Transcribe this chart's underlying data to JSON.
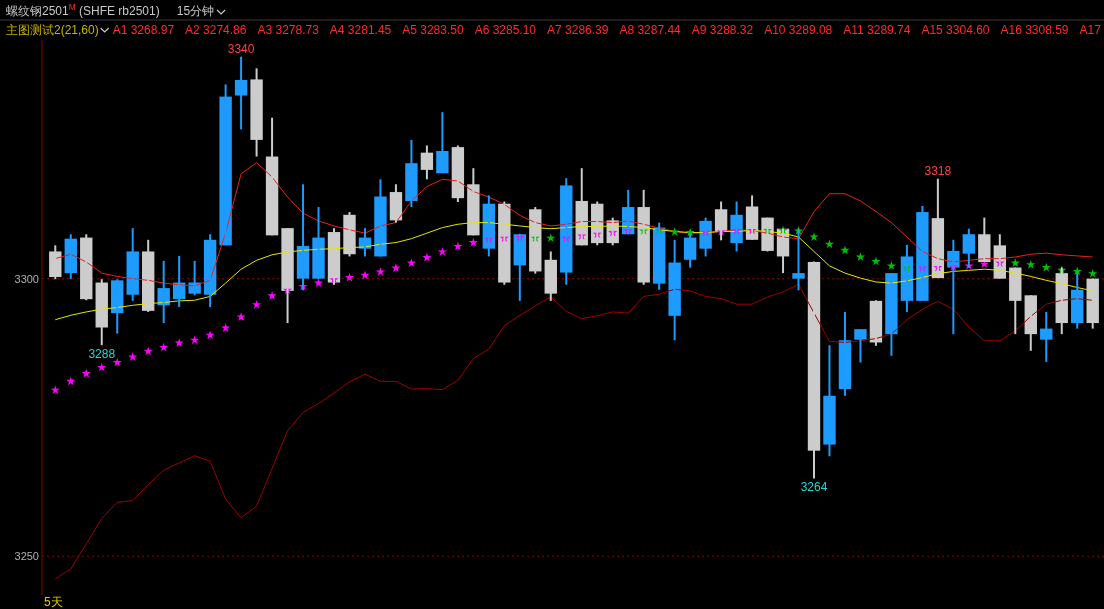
{
  "chart_data": {
    "type": "candlestick",
    "title": "螺纹钢2501$^{M}$ (SHFE rb2501)",
    "subtitle": "15分钟",
    "annotations": [
      "主图测试2(21,60)",
      "A1 3268.97",
      "A2 3274.86",
      "A3 3278.73",
      "A4 3281.45",
      "A5 3283.50",
      "A6 3285.10",
      "A7 3286.39",
      "A8 3287.44",
      "A9 3288.32",
      "A10 3289.08",
      "A11 3289.74",
      "A15 3304.60",
      "A16 3308.59",
      "A17",
      "5天"
    ],
    "value_labels": [
      null,
      null,
      null,
      "3288",
      null,
      null,
      null,
      null,
      null,
      null,
      null,
      null,
      "3340",
      null,
      null,
      null,
      null,
      null,
      null,
      null,
      null,
      null,
      null,
      null,
      null,
      null,
      null,
      null,
      null,
      null,
      null,
      null,
      null,
      null,
      null,
      null,
      null,
      null,
      null,
      null,
      null,
      null,
      null,
      null,
      null,
      null,
      null,
      null,
      null,
      "3264",
      null,
      null,
      null,
      null,
      null,
      null,
      null,
      "3318",
      null,
      null,
      null,
      null,
      null,
      null,
      null,
      null,
      null,
      null
    ],
    "categories": [
      null,
      null,
      null,
      null,
      null,
      null,
      null,
      null,
      null,
      null,
      null,
      null,
      null,
      null,
      null,
      null,
      null,
      null,
      null,
      null,
      null,
      null,
      null,
      null,
      null,
      null,
      null,
      null,
      null,
      null,
      null,
      null,
      null,
      null,
      null,
      null,
      null,
      null,
      null,
      null,
      null,
      null,
      null,
      null,
      null,
      null,
      null,
      null,
      null,
      null,
      null,
      null,
      null,
      null,
      null,
      null,
      null,
      null,
      null,
      null,
      null,
      null,
      null,
      null,
      null,
      null,
      null,
      null
    ],
    "ohlc": [
      [
        3304.9,
        3306,
        3299.9,
        3300.3
      ],
      [
        3301,
        3308,
        3299.9,
        3307.2
      ],
      [
        3307.4,
        3308,
        3296.1,
        3296.3
      ],
      [
        3299.3,
        3299.9,
        3288,
        3291.2
      ],
      [
        3293.8,
        3299.9,
        3290.1,
        3299.7
      ],
      [
        3297.1,
        3309.1,
        3296,
        3304.9
      ],
      [
        3304.9,
        3307,
        3294,
        3294.2
      ],
      [
        3295.2,
        3303.2,
        3292,
        3298.3
      ],
      [
        3296.3,
        3304.1,
        3294.9,
        3299.3
      ],
      [
        3297.3,
        3303.2,
        3297,
        3299.3
      ],
      [
        3297.1,
        3308,
        3294.9,
        3307
      ],
      [
        3306,
        3335,
        3306,
        3332.8
      ],
      [
        3333,
        3340,
        3326.9,
        3335.8
      ],
      [
        3335.9,
        3337.9,
        3322,
        3325
      ],
      [
        3322,
        3329,
        3307.8,
        3307.8
      ],
      [
        3309.1,
        3309.1,
        3292,
        3297.8
      ],
      [
        3300,
        3317,
        3297.9,
        3305.9
      ],
      [
        3300,
        3312.9,
        3299.9,
        3307.4
      ],
      [
        3308.4,
        3309.1,
        3298.9,
        3299.3
      ],
      [
        3311.5,
        3312,
        3304,
        3304.4
      ],
      [
        3305.4,
        3309.1,
        3304,
        3307.4
      ],
      [
        3304,
        3317.9,
        3304,
        3314.8
      ],
      [
        3315.6,
        3317,
        3310.1,
        3310.5
      ],
      [
        3314,
        3325,
        3312.9,
        3320.8
      ],
      [
        3322.7,
        3324,
        3317.9,
        3319.6
      ],
      [
        3319,
        3330,
        3319,
        3323
      ],
      [
        3323.7,
        3324,
        3313.8,
        3314.5
      ],
      [
        3317,
        3319.9,
        3307.8,
        3307.8
      ],
      [
        3305.4,
        3315,
        3304,
        3313.5
      ],
      [
        3313.5,
        3313.9,
        3298.9,
        3299.3
      ],
      [
        3302.4,
        3308,
        3296,
        3308
      ],
      [
        3312.5,
        3312.9,
        3300.9,
        3301.3
      ],
      [
        3303.4,
        3304.9,
        3296,
        3297.3
      ],
      [
        3301.1,
        3318.1,
        3298.9,
        3316.8
      ],
      [
        3314,
        3319.9,
        3306,
        3306
      ],
      [
        3313.5,
        3313.9,
        3306,
        3306.4
      ],
      [
        3310.5,
        3311,
        3306,
        3306.4
      ],
      [
        3308,
        3316,
        3308,
        3312.9
      ],
      [
        3312.9,
        3316,
        3298.9,
        3299.3
      ],
      [
        3299.1,
        3310.1,
        3298,
        3309.2
      ],
      [
        3293.3,
        3307,
        3288.9,
        3302.9
      ],
      [
        3303.4,
        3308.2,
        3302,
        3307.4
      ],
      [
        3305.4,
        3311,
        3304,
        3310.4
      ],
      [
        3312.5,
        3313.9,
        3306.9,
        3308.5
      ],
      [
        3306.4,
        3313.9,
        3304.9,
        3311.5
      ],
      [
        3313,
        3315,
        3307,
        3307
      ],
      [
        3311,
        3311,
        3304.9,
        3305
      ],
      [
        3309,
        3309,
        3301,
        3304
      ],
      [
        3300,
        3309,
        3297.9,
        3301
      ],
      [
        3303,
        3303.1,
        3264,
        3269
      ],
      [
        3270.1,
        3288,
        3268,
        3278.9
      ],
      [
        3280.1,
        3294,
        3278.9,
        3288.9
      ],
      [
        3289,
        3290.9,
        3284.9,
        3290.9
      ],
      [
        3296,
        3296.1,
        3287.9,
        3288.5
      ],
      [
        3290,
        3301,
        3286.1,
        3301
      ],
      [
        3296,
        3306.1,
        3294,
        3304
      ],
      [
        3296,
        3313.1,
        3296,
        3312
      ],
      [
        3310.9,
        3318,
        3300.1,
        3300.1
      ],
      [
        3302,
        3307,
        3290,
        3305
      ],
      [
        3304.5,
        3309,
        3302,
        3308
      ],
      [
        3308,
        3311,
        3303,
        3303
      ],
      [
        3306,
        3308,
        3300,
        3300
      ],
      [
        3302,
        3302,
        3290,
        3296
      ],
      [
        3297,
        3297,
        3287,
        3290
      ],
      [
        3289,
        3294,
        3285,
        3291
      ],
      [
        3301,
        3302,
        3290,
        3292
      ],
      [
        3292,
        3301,
        3291,
        3298
      ],
      [
        3300,
        3300,
        3291,
        3292
      ]
    ],
    "colors": [
      "#cccccc",
      "#1e9bff",
      "#cccccc",
      "#cccccc",
      "#1e9bff",
      "#1e9bff",
      "#cccccc",
      "#1e9bff",
      "#1e9bff",
      "#1e9bff",
      "#1e9bff",
      "#1e9bff",
      "#1e9bff",
      "#cccccc",
      "#cccccc",
      "#cccccc",
      "#1e9bff",
      "#1e9bff",
      "#cccccc",
      "#cccccc",
      "#1e9bff",
      "#1e9bff",
      "#cccccc",
      "#1e9bff",
      "#cccccc",
      "#1e9bff",
      "#cccccc",
      "#cccccc",
      "#1e9bff",
      "#cccccc",
      "#1e9bff",
      "#cccccc",
      "#cccccc",
      "#1e9bff",
      "#cccccc",
      "#cccccc",
      "#cccccc",
      "#1e9bff",
      "#cccccc",
      "#1e9bff",
      "#1e9bff",
      "#1e9bff",
      "#1e9bff",
      "#cccccc",
      "#1e9bff",
      "#cccccc",
      "#cccccc",
      "#cccccc",
      "#1e9bff",
      "#cccccc",
      "#1e9bff",
      "#1e9bff",
      "#1e9bff",
      "#cccccc",
      "#1e9bff",
      "#1e9bff",
      "#1e9bff",
      "#cccccc",
      "#1e9bff",
      "#1e9bff",
      "#cccccc",
      "#cccccc",
      "#cccccc",
      "#cccccc",
      "#1e9bff",
      "#cccccc",
      "#1e9bff",
      "#cccccc"
    ],
    "series": [
      {
        "type": "line",
        "color": "#e8201c",
        "values": [
          3303.6,
          3304.4,
          3303,
          3301,
          3300.4,
          3300,
          3299.7,
          3299.2,
          3298.9,
          3298.7,
          3299.7,
          3308.2,
          3318.9,
          3320.9,
          3318.3,
          3314.7,
          3311.8,
          3310.4,
          3309.5,
          3308.8,
          3308.2,
          3309.5,
          3310.1,
          3314,
          3316.6,
          3317.9,
          3317.6,
          3315.7,
          3314.7,
          3313.4,
          3311.4,
          3310.1,
          3309.5,
          3309.8,
          3310.3,
          3310.3,
          3310.1,
          3310.4,
          3309.8,
          3309.1,
          3308.5,
          3308.2,
          3308.3,
          3308.5,
          3308.8,
          3308.7,
          3308.2,
          3307.5,
          3307.2,
          3312.1,
          3315.3,
          3315.3,
          3314,
          3312.1,
          3310.1,
          3307.5,
          3304.9,
          3303.6,
          3303,
          3303.3,
          3303.6,
          3303.6,
          3303.9,
          3304.4,
          3304.6,
          3304.3,
          3304.1,
          3303.9
        ]
      },
      {
        "type": "line",
        "color": "#e6e600",
        "values": [
          3292.6,
          3293.4,
          3294,
          3294.5,
          3294.8,
          3295.2,
          3295.5,
          3295.7,
          3296,
          3296.1,
          3296.8,
          3299.2,
          3301.7,
          3303.3,
          3304.3,
          3304.8,
          3305.1,
          3305.3,
          3305.4,
          3305.6,
          3305.7,
          3306.2,
          3306.5,
          3307.2,
          3308.2,
          3309.2,
          3309.8,
          3310.1,
          3310.1,
          3309.8,
          3309.5,
          3309.2,
          3309,
          3309.2,
          3309.4,
          3309.4,
          3309.5,
          3309.4,
          3309.2,
          3308.8,
          3308.5,
          3308.3,
          3308.3,
          3308.5,
          3308.5,
          3308.7,
          3308.5,
          3308.2,
          3307.5,
          3304.9,
          3302.3,
          3301,
          3300.1,
          3299.4,
          3299.2,
          3299.6,
          3300.2,
          3300.9,
          3301.3,
          3301.5,
          3301.7,
          3301.5,
          3301,
          3300.4,
          3299.7,
          3299.1,
          3298.4,
          3297.8
        ]
      },
      {
        "type": "line",
        "color": "#a00000",
        "values": [
          3245.9,
          3247.7,
          3252.2,
          3256.8,
          3259.7,
          3260,
          3262.9,
          3265.5,
          3266.8,
          3268.1,
          3267.1,
          3260.3,
          3256.9,
          3259,
          3265.8,
          3272.6,
          3275.9,
          3277.5,
          3279.4,
          3281.4,
          3282.8,
          3281.5,
          3281.5,
          3280.1,
          3280.2,
          3280,
          3281.7,
          3285.6,
          3287.3,
          3291.5,
          3293.4,
          3295.1,
          3296.7,
          3294.1,
          3292.8,
          3293.3,
          3294,
          3293.8,
          3296.8,
          3297.2,
          3298.1,
          3297.8,
          3296.8,
          3296.4,
          3295.4,
          3295.4,
          3296.7,
          3297.6,
          3299,
          3293.8,
          3288.7,
          3288.5,
          3288.8,
          3289.2,
          3290,
          3292.6,
          3294.5,
          3295.9,
          3294.5,
          3291.3,
          3288.8,
          3288.8,
          3290.6,
          3293.2,
          3295.4,
          3296.1,
          3296.4,
          3296.1
        ]
      },
      {
        "type": "scatter",
        "marker": "star",
        "colors": [
          "#ff00ff",
          "#ff00ff",
          "#ff00ff",
          "#ff00ff",
          "#ff00ff",
          "#ff00ff",
          "#ff00ff",
          "#ff00ff",
          "#ff00ff",
          "#ff00ff",
          "#ff00ff",
          "#ff00ff",
          "#ff00ff",
          "#ff00ff",
          "#ff00ff",
          "#ff00ff",
          "#ff00ff",
          "#ff00ff",
          "#ff00ff",
          "#ff00ff",
          "#ff00ff",
          "#ff00ff",
          "#ff00ff",
          "#ff00ff",
          "#ff00ff",
          "#ff00ff",
          "#ff00ff",
          "#ff00ff",
          "#ff00ff",
          "#ff00ff",
          "#ff00ff",
          "#00c000",
          "#00c000",
          "#ff00ff",
          "#ff00ff",
          "#ff00ff",
          "#ff00ff",
          "#ff00ff",
          "#00c000",
          "#00c000",
          "#00c000",
          "#00c000",
          "#ff00ff",
          "#ff00ff",
          "#ff00ff",
          "#ff00ff",
          "#00c000",
          "#00c000",
          "#00c000",
          "#00c000",
          "#00c000",
          "#00c000",
          "#00c000",
          "#00c000",
          "#00c000",
          "#00c000",
          "#ff00ff",
          "#ff00ff",
          "#ff00ff",
          "#ff00ff",
          "#ff00ff",
          "#ff00ff",
          "#00c000",
          "#00c000",
          "#00c000",
          "#00c000",
          "#00c000",
          "#00c000"
        ],
        "values": [
          3279.9,
          3281.5,
          3282.9,
          3284,
          3284.9,
          3285.9,
          3286.9,
          3287.6,
          3288.4,
          3288.9,
          3289.8,
          3291.1,
          3293.1,
          3295.3,
          3296.9,
          3297.9,
          3298.6,
          3299.2,
          3299.8,
          3300.2,
          3300.6,
          3301.2,
          3301.9,
          3302.8,
          3303.8,
          3304.8,
          3305.8,
          3306.5,
          3307.1,
          3307.3,
          3307.4,
          3307.3,
          3307.3,
          3307.3,
          3307.7,
          3308,
          3308.3,
          3308.6,
          3308.6,
          3308.7,
          3308.4,
          3308.3,
          3308.3,
          3308.4,
          3308.6,
          3308.7,
          3308.7,
          3308.7,
          3308.6,
          3307.5,
          3306.2,
          3305.1,
          3303.9,
          3303.1,
          3302.3,
          3301.9,
          3301.9,
          3302,
          3302.1,
          3302.3,
          3302.6,
          3302.8,
          3302.8,
          3302.5,
          3302,
          3301.5,
          3301.3,
          3300.9
        ]
      }
    ],
    "ylim": [
      3243,
      3343
    ],
    "yticks": [
      3250,
      3300
    ],
    "grid": "y",
    "tick_labels": "y"
  }
}
